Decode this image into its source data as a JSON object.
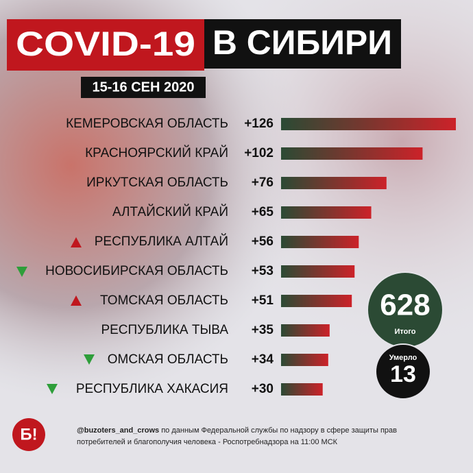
{
  "chart_data": {
    "type": "hbar",
    "title": [
      "COVID-19",
      "В СИБИРИ"
    ],
    "subtitle": "15-16 СЕН 2020",
    "categories": [
      "КЕМЕРОВСКАЯ ОБЛАСТЬ",
      "КРАСНОЯРСКИЙ КРАЙ",
      "ИРКУТСКАЯ ОБЛАСТЬ",
      "АЛТАЙСКИЙ КРАЙ",
      "РЕСПУБЛИКА АЛТАЙ",
      "НОВОСИБИРСКАЯ ОБЛАСТЬ",
      "ТОМСКАЯ ОБЛАСТЬ",
      "РЕСПУБЛИКА ТЫВА",
      "ОМСКАЯ ОБЛАСТЬ",
      "РЕСПУБЛИКА ХАКАСИЯ"
    ],
    "values": [
      126,
      102,
      76,
      65,
      56,
      53,
      51,
      35,
      34,
      30
    ],
    "value_labels": [
      "+126",
      "+102",
      "+76",
      "+65",
      "+56",
      "+53",
      "+51",
      "+35",
      "+34",
      "+30"
    ],
    "gradient": [
      "#2b4a34",
      "#cc2229"
    ],
    "annotations": [
      {
        "label": "Итого",
        "value": 628
      },
      {
        "label": "Умерло",
        "value": 13
      }
    ]
  },
  "logo": "Б!",
  "footer": {
    "handle": "@buzoters_and_crows",
    "lines": [
      "по данным Федеральной службы по надзору в сфере защиты прав",
      "потребителей и благополучия человека - Роспотребнадзора на 11:00 МСК"
    ]
  }
}
